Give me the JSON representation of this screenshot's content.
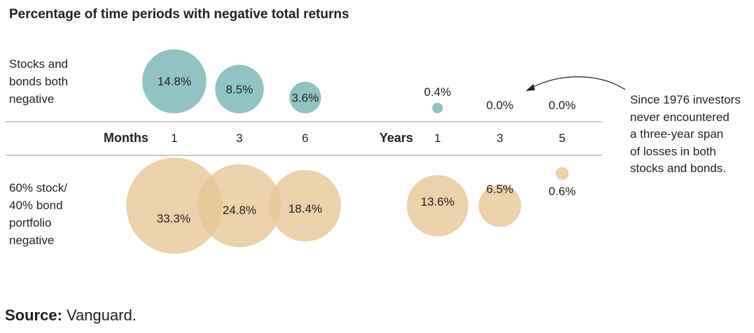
{
  "title": "Percentage of time periods with negative total returns",
  "row_labels": {
    "top": [
      "Stocks and",
      "bonds both",
      "negative"
    ],
    "bottom": [
      "60% stock/",
      "40% bond",
      "portfolio",
      "negative"
    ]
  },
  "annotation": [
    "Since 1976 investors",
    "never encountered",
    "a three-year span",
    "of losses in both",
    "stocks and bonds."
  ],
  "source": {
    "label": "Source:",
    "text": " Vanguard."
  },
  "colors": {
    "stocks_and_bonds": "#8fc4c3",
    "portfolio_60_40": "#e7c694",
    "rule": "#9a9a9a",
    "text": "#231f20"
  },
  "chart_data": {
    "type": "bubble",
    "title": "Percentage of time periods with negative total returns",
    "groups": [
      {
        "label": "Months",
        "periods": [
          "1",
          "3",
          "6"
        ]
      },
      {
        "label": "Years",
        "periods": [
          "1",
          "3",
          "5"
        ]
      }
    ],
    "series": [
      {
        "name": "Stocks and bonds both negative",
        "values": [
          14.8,
          8.5,
          3.6,
          0.4,
          0.0,
          0.0
        ],
        "labels": [
          "14.8%",
          "8.5%",
          "3.6%",
          "0.4%",
          "0.0%",
          "0.0%"
        ]
      },
      {
        "name": "60% stock/ 40% bond portfolio negative",
        "values": [
          33.3,
          24.8,
          18.4,
          13.6,
          6.5,
          0.6
        ],
        "labels": [
          "33.3%",
          "24.8%",
          "18.4%",
          "13.6%",
          "6.5%",
          "0.6%"
        ]
      }
    ],
    "units": "%"
  }
}
